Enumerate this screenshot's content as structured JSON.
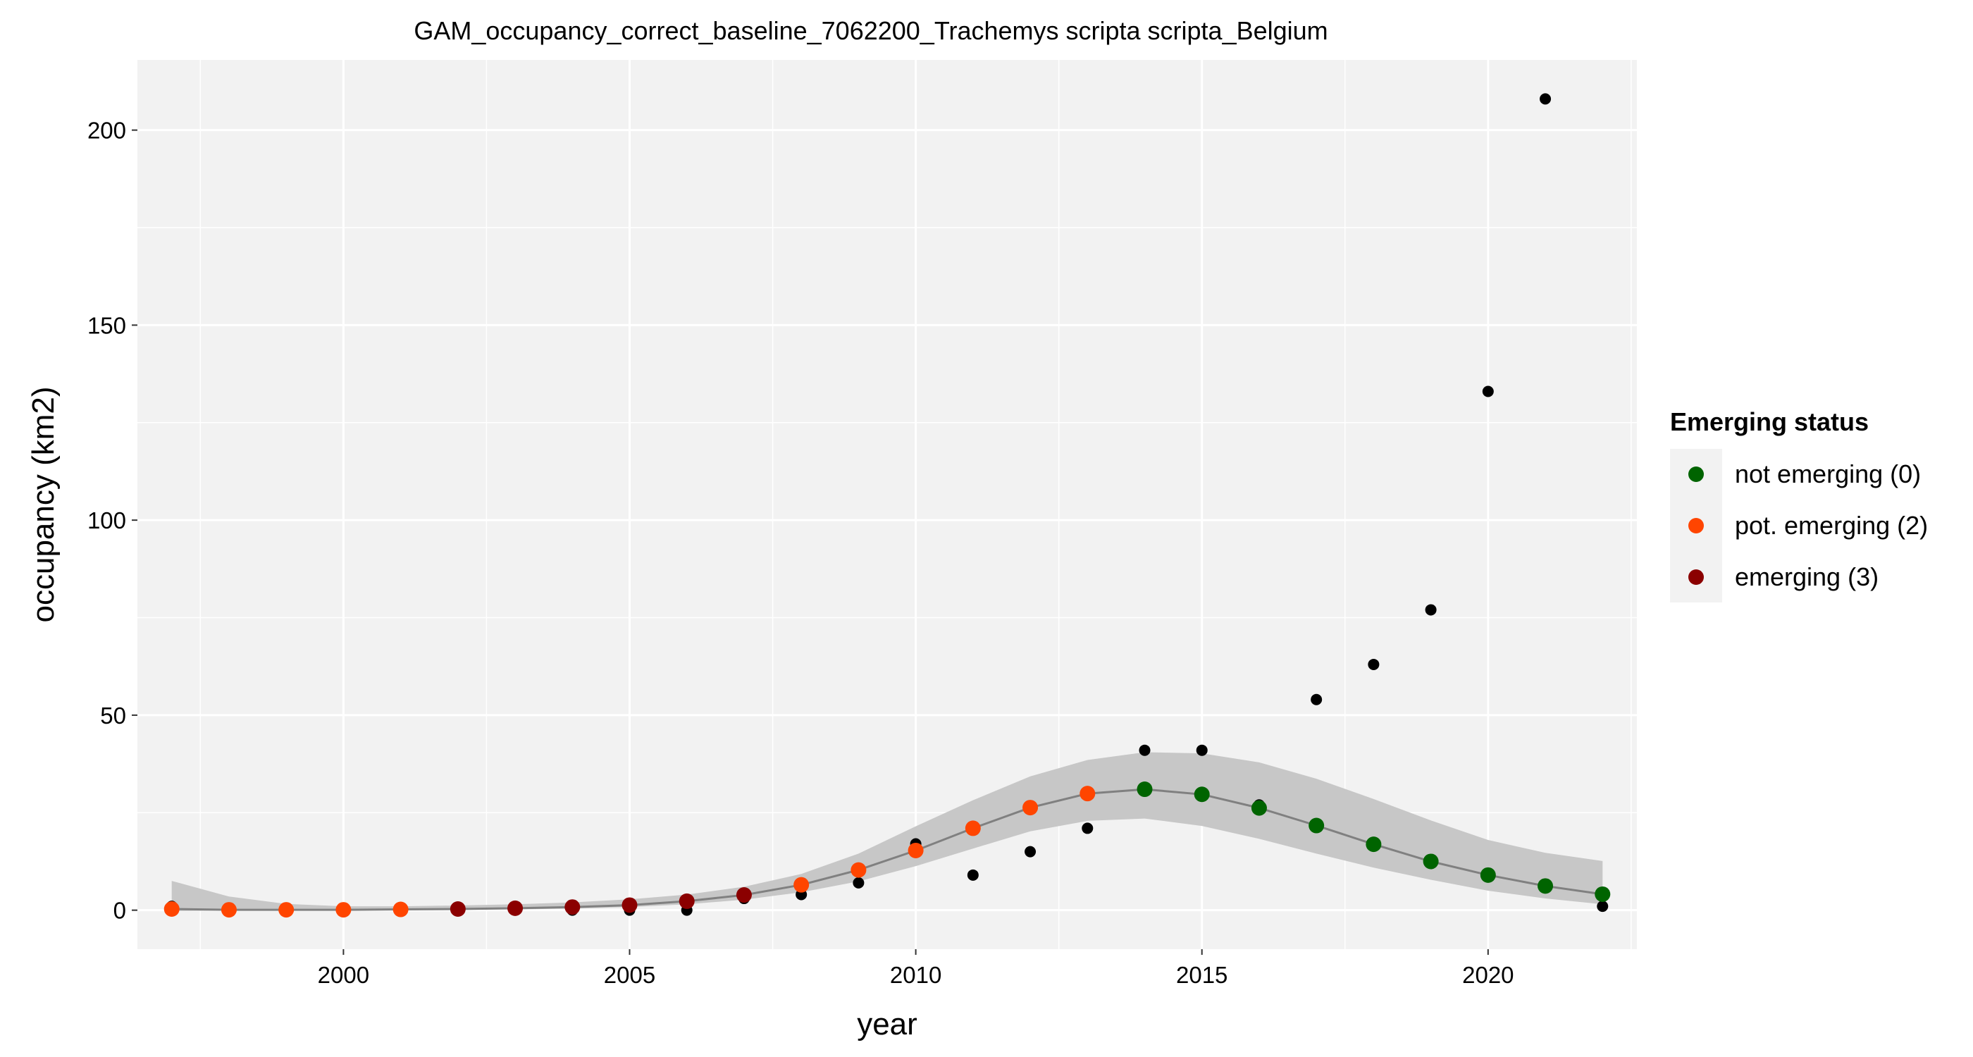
{
  "chart_data": {
    "type": "scatter",
    "title": "GAM_occupancy_correct_baseline_7062200_Trachemys scripta scripta_Belgium",
    "xlabel": "year",
    "ylabel": "occupancy (km2)",
    "xlim": [
      1996.4,
      2022.6
    ],
    "ylim": [
      -10,
      218
    ],
    "x_ticks": [
      2000,
      2005,
      2010,
      2015,
      2020
    ],
    "y_ticks": [
      0,
      50,
      100,
      150,
      200
    ],
    "grid": true,
    "background": "#f2f2f2",
    "observed": {
      "color": "#000000",
      "x": [
        1997,
        1998,
        1999,
        2000,
        2001,
        2002,
        2003,
        2004,
        2005,
        2006,
        2007,
        2008,
        2009,
        2010,
        2011,
        2012,
        2013,
        2014,
        2015,
        2016,
        2017,
        2018,
        2019,
        2020,
        2021,
        2022
      ],
      "y": [
        1,
        0,
        0,
        0,
        0,
        0,
        0,
        0,
        0,
        0,
        3,
        4,
        7,
        17,
        9,
        15,
        21,
        41,
        41,
        27,
        54,
        63,
        77,
        133,
        208,
        1
      ]
    },
    "fit": {
      "line_color": "#808080",
      "band_color": "#c4c4c4",
      "x": [
        1997,
        1998,
        1999,
        2000,
        2001,
        2002,
        2003,
        2004,
        2005,
        2006,
        2007,
        2008,
        2009,
        2010,
        2011,
        2012,
        2013,
        2014,
        2015,
        2016,
        2017,
        2018,
        2019,
        2020,
        2021,
        2022
      ],
      "y": [
        0.3,
        0.1,
        0.1,
        0.1,
        0.2,
        0.3,
        0.5,
        0.8,
        1.3,
        2.3,
        3.9,
        6.5,
        10.3,
        15.3,
        21.0,
        26.3,
        29.9,
        31.0,
        29.7,
        26.2,
        21.7,
        16.9,
        12.5,
        9.0,
        6.2,
        4.1
      ],
      "lower": [
        -0.2,
        -0.1,
        -0.1,
        -0.1,
        0.0,
        0.1,
        0.2,
        0.4,
        0.8,
        1.5,
        2.7,
        4.6,
        7.4,
        11.3,
        15.8,
        20.2,
        22.9,
        23.5,
        21.6,
        18.3,
        14.5,
        10.9,
        7.8,
        5.0,
        3.0,
        1.5
      ],
      "upper": [
        7.5,
        3.5,
        1.6,
        1.0,
        1.0,
        1.2,
        1.5,
        2.0,
        2.8,
        4.0,
        6.0,
        9.3,
        14.5,
        21.5,
        28.2,
        34.3,
        38.5,
        40.5,
        40.2,
        37.9,
        33.7,
        28.5,
        23.0,
        18.0,
        14.7,
        12.6
      ]
    },
    "status_points": {
      "x": [
        1997,
        1998,
        1999,
        2000,
        2001,
        2002,
        2003,
        2004,
        2005,
        2006,
        2007,
        2008,
        2009,
        2010,
        2011,
        2012,
        2013,
        2014,
        2015,
        2016,
        2017,
        2018,
        2019,
        2020,
        2021,
        2022
      ],
      "y": [
        0.3,
        0.1,
        0.1,
        0.1,
        0.2,
        0.3,
        0.5,
        0.8,
        1.3,
        2.3,
        3.9,
        6.5,
        10.3,
        15.3,
        21.0,
        26.3,
        29.9,
        31.0,
        29.7,
        26.2,
        21.7,
        16.9,
        12.5,
        9.0,
        6.2,
        4.1
      ],
      "status": [
        2,
        2,
        2,
        2,
        2,
        3,
        3,
        3,
        3,
        3,
        3,
        2,
        2,
        2,
        2,
        2,
        2,
        0,
        0,
        0,
        0,
        0,
        0,
        0,
        0,
        0
      ]
    },
    "legend": {
      "title": "Emerging status",
      "placement": "right",
      "entries": [
        {
          "code": 0,
          "label": "not emerging (0)",
          "color": "#006400"
        },
        {
          "code": 2,
          "label": "pot. emerging (2)",
          "color": "#ff4500"
        },
        {
          "code": 3,
          "label": "emerging (3)",
          "color": "#8b0000"
        }
      ]
    }
  }
}
